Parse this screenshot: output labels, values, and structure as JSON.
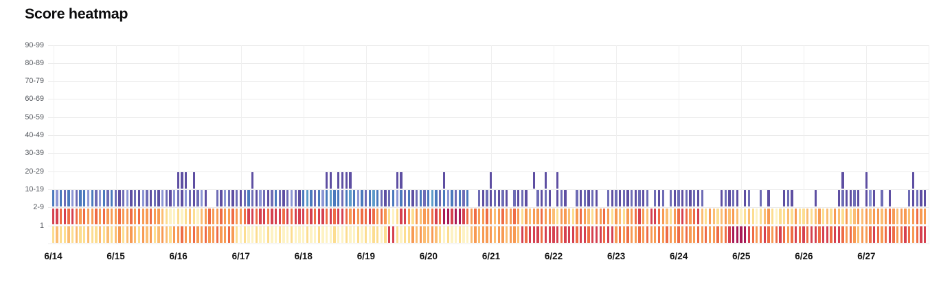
{
  "title": "Score heatmap",
  "chart_data": {
    "type": "heatmap",
    "title": "Score heatmap",
    "x_labels": [
      "6/14",
      "6/15",
      "6/16",
      "6/17",
      "6/18",
      "6/19",
      "6/20",
      "6/21",
      "6/22",
      "6/23",
      "6/24",
      "6/25",
      "6/26",
      "6/27"
    ],
    "y_labels": [
      "90-99",
      "80-89",
      "70-79",
      "60-69",
      "50-59",
      "40-49",
      "30-39",
      "20-29",
      "10-19",
      "2-9",
      "1"
    ],
    "slots_per_day": 16,
    "grid": true,
    "legend": "none",
    "palette": {
      "P": "#5e4fa2",
      "p": "#6e6cb5",
      "v": "#8d96d4",
      "B": "#4b79bd",
      "T": "#5e9bc9",
      "M": "#a81a55",
      "R": "#d5414f",
      "r": "#ee6c45",
      "O": "#f79a53",
      "o": "#fbbd72",
      "y": "#fcdd90",
      "Y": "#fdf2c3"
    },
    "rows": {
      "20-29": [
        "................",
        "................",
        "PPP.P...........",
        "...P............",
        "......PP.PPPP...",
        "........PP......",
        "....P...........",
        "P..........P..P.",
        ".P..............",
        "................",
        "................",
        "................",
        "..........P.....",
        "P...........P..."
      ],
      "10-19": [
        "BvBpBvpBBvBpvBpB",
        "pPpvPpPvpPpPvpPv",
        "pPvpPpvP..pPvpPp",
        "PpBpPvpPpBpPpvpP",
        "BTBpBvBTBBpBTBvB",
        "pBTBpPpBvBpBPpBp",
        "BTBpBvBpBpB..pPp",
        "PpPpP.pPpP..pPpP",
        ".PpP..pPpPpP..pP",
        "pPpPpPpPp.pPp.pP",
        "pPpPpPp....PpPpP",
        ".Pp..p.P...PpP..",
        "...P.....PpPPpP.",
        "PvP.p.P....pPpPP"
      ],
      "2-9": [
        "RRrRrRrOrOOrOrOO",
        "OrOOrOrOOrOOoyYY",
        "yYyoyYoOrOOrOOrO",
        "OrRRrRRrRRRrRrRR",
        "RrRrRRrRrRRrOrOr",
        "rRrOrOyYyRROyOoO",
        "OrRrMMRMMRrOrOOr",
        "OoOrOOrOyOoOOrOO",
        "oyOOoyOrOoyOOrOy",
        "OoyOOrROoRRrOoyO",
        "rRrOrRoyOoyoOoOo",
        "YyoyYyoOyYyyoyOy",
        "yoyoOyoyOoyOyoOo",
        "OoOOoOrOoOOoOrOO"
      ],
      "1": [
        "yoyyoyoyyoyyoyoy",
        "oOyoOoyOoOyoOoyO",
        "OrOOrOOrOOrOOrOy",
        "YyYYyYYyYYyYYyYY",
        "YyYYyYYYyYYyYYyY",
        "yYyyYyRRyYyyOoOo",
        "oOoyYyYYyYYoOoOO",
        "OoOOoOOoRrRRRrRR",
        "RRrRRRrRRrRRRrRR",
        "OrOrOOrOrOOrOrOO",
        "rOrOOrOrOOrOrRMM",
        "MMRrOrRrOrRrOrRr",
        "RrRRrRRrRRrOrOoO",
        "OrRrOrRrOrRrOrRR"
      ]
    },
    "colors": {
      "title": "#0c0c0d",
      "x_label": "#141414",
      "y_label": "#52565c",
      "gridline_h": "#ebebeb",
      "gridline_v": "#efefef",
      "background": "#ffffff"
    }
  }
}
